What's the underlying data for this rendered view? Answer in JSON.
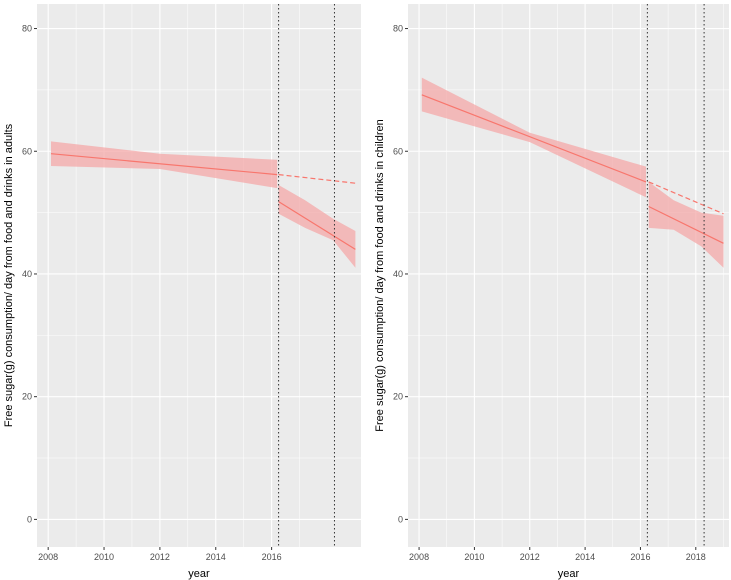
{
  "chart_data": [
    {
      "type": "line",
      "title": "",
      "xlabel": "year",
      "ylabel": "Free sugar(g) consumption/ day from food and drinks in adults",
      "xlim": [
        2007.6,
        2019.2
      ],
      "ylim": [
        -4.5,
        84
      ],
      "x_ticks": [
        2008,
        2010,
        2012,
        2014,
        2016
      ],
      "x_tick_labels": [
        "2008",
        "2010",
        "2012",
        "2014",
        "2016"
      ],
      "y_ticks": [
        0,
        20,
        40,
        60,
        80
      ],
      "y_tick_labels": [
        "0",
        "20",
        "40",
        "60",
        "80"
      ],
      "grid": true,
      "vlines": [
        2016.25,
        2018.25
      ],
      "series": [
        {
          "style": "solid",
          "segments": [
            [
              {
                "x": 2008.1,
                "y": 59.6
              },
              {
                "x": 2016.2,
                "y": 56.2
              }
            ],
            [
              {
                "x": 2016.25,
                "y": 51.8
              },
              {
                "x": 2019.0,
                "y": 44.0
              }
            ]
          ],
          "ribbons": [
            [
              {
                "x": 2008.1,
                "upper": 61.6,
                "lower": 57.6
              },
              {
                "x": 2012.0,
                "upper": 59.6,
                "lower": 57.1
              },
              {
                "x": 2016.2,
                "upper": 58.6,
                "lower": 54.0
              }
            ],
            [
              {
                "x": 2016.25,
                "upper": 54.5,
                "lower": 49.8
              },
              {
                "x": 2017.2,
                "upper": 52.0,
                "lower": 47.5
              },
              {
                "x": 2018.2,
                "upper": 49.0,
                "lower": 45.5
              },
              {
                "x": 2019.0,
                "upper": 47.0,
                "lower": 41.0
              }
            ]
          ]
        },
        {
          "style": "dashed",
          "points": [
            {
              "x": 2016.25,
              "y": 56.2
            },
            {
              "x": 2019.0,
              "y": 54.8
            }
          ]
        }
      ],
      "colors": {
        "line": "#f8766d",
        "ribbon": "#f4a8a8",
        "panel": "#ebebeb",
        "grid": "#ffffff",
        "vline": "#333333"
      }
    },
    {
      "type": "line",
      "title": "",
      "xlabel": "year",
      "ylabel": "Free sugar(g) consumption/ day from food and drinks in children",
      "xlim": [
        2007.6,
        2019.2
      ],
      "ylim": [
        -4.5,
        84
      ],
      "x_ticks": [
        2008,
        2010,
        2012,
        2014,
        2016,
        2018
      ],
      "x_tick_labels": [
        "2008",
        "2010",
        "2012",
        "2014",
        "2016",
        "2018"
      ],
      "y_ticks": [
        0,
        20,
        40,
        60,
        80
      ],
      "y_tick_labels": [
        "0",
        "20",
        "40",
        "60",
        "80"
      ],
      "grid": true,
      "vlines": [
        2016.25,
        2018.3
      ],
      "series": [
        {
          "style": "solid",
          "segments": [
            [
              {
                "x": 2008.1,
                "y": 69.2
              },
              {
                "x": 2016.2,
                "y": 55.0
              }
            ],
            [
              {
                "x": 2016.3,
                "y": 51.0
              },
              {
                "x": 2019.0,
                "y": 45.0
              }
            ]
          ],
          "ribbons": [
            [
              {
                "x": 2008.1,
                "upper": 72.0,
                "lower": 66.5
              },
              {
                "x": 2012.0,
                "upper": 63.0,
                "lower": 61.5
              },
              {
                "x": 2016.2,
                "upper": 57.5,
                "lower": 52.5
              }
            ],
            [
              {
                "x": 2016.3,
                "upper": 55.0,
                "lower": 47.5
              },
              {
                "x": 2017.2,
                "upper": 52.0,
                "lower": 47.2
              },
              {
                "x": 2018.2,
                "upper": 50.0,
                "lower": 44.5
              },
              {
                "x": 2019.0,
                "upper": 49.5,
                "lower": 41.0
              }
            ]
          ]
        },
        {
          "style": "dashed",
          "points": [
            {
              "x": 2016.3,
              "y": 55.0
            },
            {
              "x": 2019.0,
              "y": 49.8
            }
          ]
        }
      ],
      "colors": {
        "line": "#f8766d",
        "ribbon": "#f4a8a8",
        "panel": "#ebebeb",
        "grid": "#ffffff",
        "vline": "#333333"
      }
    }
  ]
}
